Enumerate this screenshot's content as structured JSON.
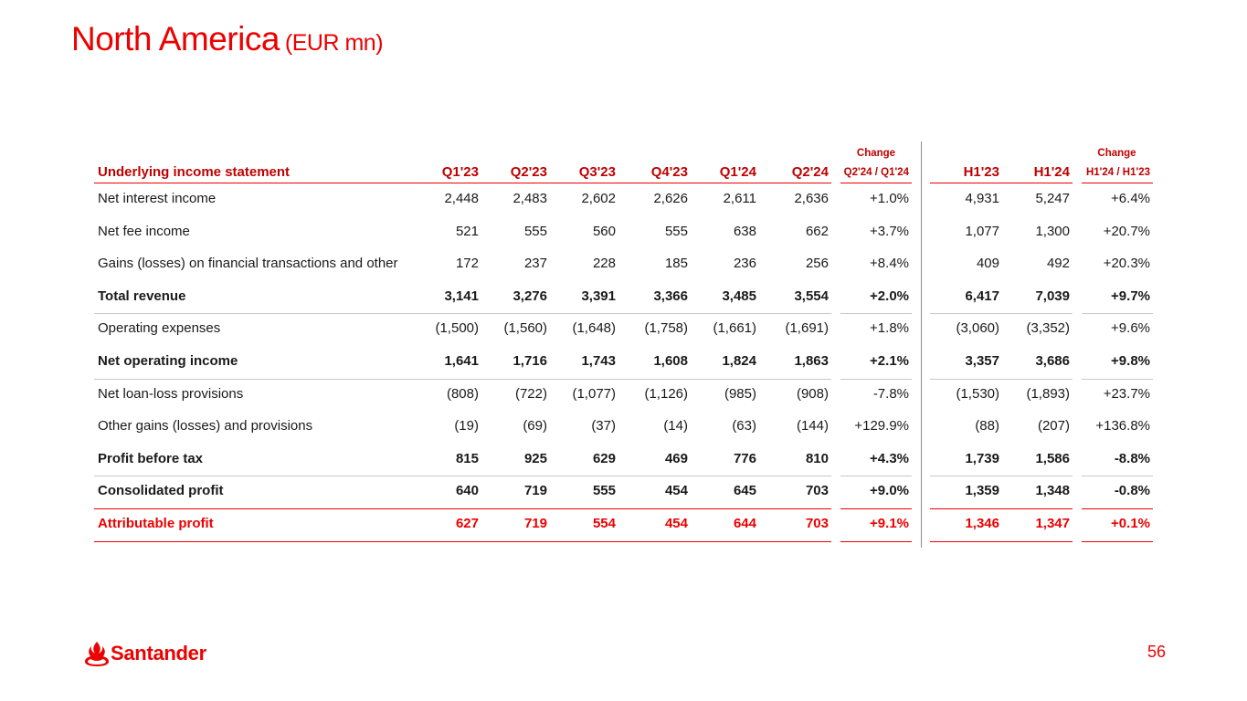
{
  "title": "North America",
  "title_unit": "(EUR mn)",
  "table": {
    "header_label": "Underlying income statement",
    "change_label": "Change",
    "columns": [
      "Q1'23",
      "Q2'23",
      "Q3'23",
      "Q4'23",
      "Q1'24",
      "Q2'24",
      "Q2'24 / Q1'24",
      "H1'23",
      "H1'24",
      "H1'24 / H1'23"
    ],
    "rows": [
      {
        "label": "Net interest income",
        "values": [
          "2,448",
          "2,483",
          "2,602",
          "2,626",
          "2,611",
          "2,636",
          "+1.0%",
          "4,931",
          "5,247",
          "+6.4%"
        ]
      },
      {
        "label": "Net fee income",
        "values": [
          "521",
          "555",
          "560",
          "555",
          "638",
          "662",
          "+3.7%",
          "1,077",
          "1,300",
          "+20.7%"
        ]
      },
      {
        "label": "Gains (losses) on financial transactions and other",
        "values": [
          "172",
          "237",
          "228",
          "185",
          "236",
          "256",
          "+8.4%",
          "409",
          "492",
          "+20.3%"
        ]
      },
      {
        "label": "Total revenue",
        "values": [
          "3,141",
          "3,276",
          "3,391",
          "3,366",
          "3,485",
          "3,554",
          "+2.0%",
          "6,417",
          "7,039",
          "+9.7%"
        ]
      },
      {
        "label": "Operating expenses",
        "values": [
          "(1,500)",
          "(1,560)",
          "(1,648)",
          "(1,758)",
          "(1,661)",
          "(1,691)",
          "+1.8%",
          "(3,060)",
          "(3,352)",
          "+9.6%"
        ]
      },
      {
        "label": "Net operating income",
        "values": [
          "1,641",
          "1,716",
          "1,743",
          "1,608",
          "1,824",
          "1,863",
          "+2.1%",
          "3,357",
          "3,686",
          "+9.8%"
        ]
      },
      {
        "label": "Net loan-loss provisions",
        "values": [
          "(808)",
          "(722)",
          "(1,077)",
          "(1,126)",
          "(985)",
          "(908)",
          "-7.8%",
          "(1,530)",
          "(1,893)",
          "+23.7%"
        ]
      },
      {
        "label": "Other gains (losses) and provisions",
        "values": [
          "(19)",
          "(69)",
          "(37)",
          "(14)",
          "(63)",
          "(144)",
          "+129.9%",
          "(88)",
          "(207)",
          "+136.8%"
        ]
      },
      {
        "label": "Profit before tax",
        "values": [
          "815",
          "925",
          "629",
          "469",
          "776",
          "810",
          "+4.3%",
          "1,739",
          "1,586",
          "-8.8%"
        ]
      },
      {
        "label": "Consolidated profit",
        "values": [
          "640",
          "719",
          "555",
          "454",
          "645",
          "703",
          "+9.0%",
          "1,359",
          "1,348",
          "-0.8%"
        ]
      },
      {
        "label": "Attributable profit",
        "values": [
          "627",
          "719",
          "554",
          "454",
          "644",
          "703",
          "+9.1%",
          "1,346",
          "1,347",
          "+0.1%"
        ]
      }
    ]
  },
  "brand": {
    "name": "Santander",
    "color": "#ec0000",
    "logo_icon": "santander-flame-icon"
  },
  "page_number": "56"
}
